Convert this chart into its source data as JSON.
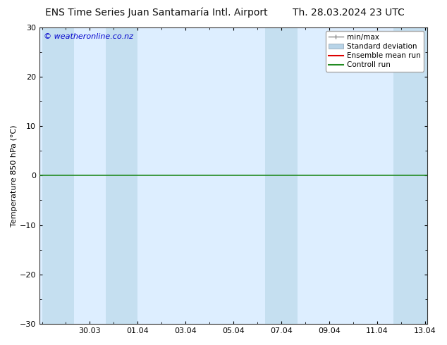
{
  "title_left": "ENS Time Series Juan Santamaría Intl. Airport",
  "title_right": "Th. 28.03.2024 23 UTC",
  "ylabel": "Temperature 850 hPa (°C)",
  "watermark": "© weatheronline.co.nz",
  "ylim": [
    -30,
    30
  ],
  "yticks": [
    -30,
    -20,
    -10,
    0,
    10,
    20,
    30
  ],
  "xtick_labels": [
    "30.03",
    "01.04",
    "03.04",
    "05.04",
    "07.04",
    "09.04",
    "11.04",
    "13.04"
  ],
  "xtick_positions": [
    2,
    4,
    6,
    8,
    10,
    12,
    14,
    16
  ],
  "xlim": [
    -0.1,
    16.1
  ],
  "bg_color": "#ffffff",
  "plot_bg_color": "#ddeeff",
  "shaded_bands": [
    [
      0.0,
      1.33
    ],
    [
      2.67,
      4.0
    ],
    [
      9.33,
      10.67
    ],
    [
      14.67,
      16.1
    ]
  ],
  "shaded_col_color": "#c5dff0",
  "hline_y": 0,
  "hline_color": "#228b22",
  "hline_linewidth": 1.2,
  "legend_minmax_color": "#888888",
  "legend_stddev_color": "#b8d4e8",
  "legend_ens_color": "#dd0000",
  "legend_ctrl_color": "#228b22",
  "title_fontsize": 10,
  "tick_label_fontsize": 8,
  "ylabel_fontsize": 8,
  "watermark_color": "#0000cc",
  "watermark_fontsize": 8,
  "legend_fontsize": 7.5
}
